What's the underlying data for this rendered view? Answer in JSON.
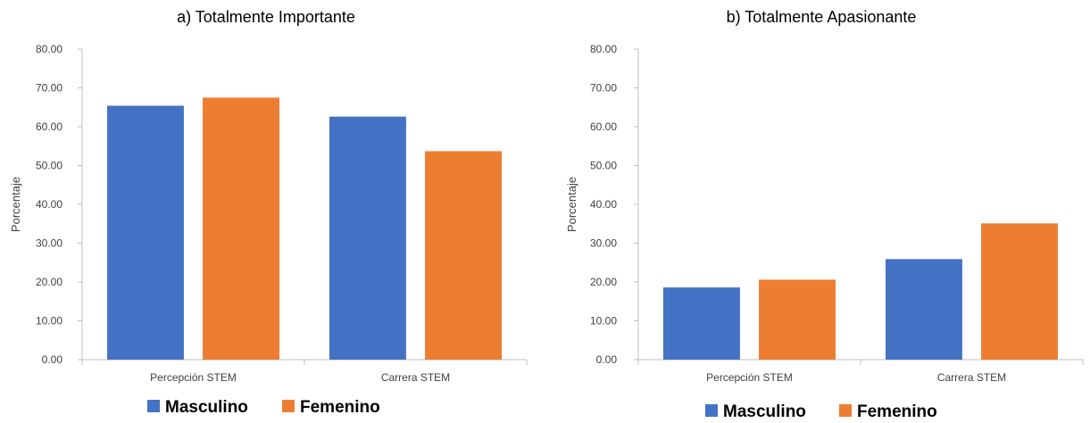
{
  "chart_data": [
    {
      "type": "bar",
      "title": "a) Totalmente Importante",
      "xlabel": "",
      "ylabel": "Porcentaje",
      "ylim": [
        0,
        80
      ],
      "yticks": [
        "0.00",
        "10.00",
        "20.00",
        "30.00",
        "40.00",
        "50.00",
        "60.00",
        "70.00",
        "80.00"
      ],
      "categories": [
        "Percepción STEM",
        "Carrera STEM"
      ],
      "series": [
        {
          "name": "Masculino",
          "color": "#4472C4",
          "values": [
            65.4,
            62.6
          ]
        },
        {
          "name": "Femenino",
          "color": "#ED7D31",
          "values": [
            67.5,
            53.7
          ]
        }
      ],
      "legend": "bottom",
      "grid": false
    },
    {
      "type": "bar",
      "title": "b) Totalmente Apasionante",
      "xlabel": "",
      "ylabel": "Porcentaje",
      "ylim": [
        0,
        80
      ],
      "yticks": [
        "0.00",
        "10.00",
        "20.00",
        "30.00",
        "40.00",
        "50.00",
        "60.00",
        "70.00",
        "80.00"
      ],
      "categories": [
        "Percepción STEM",
        "Carrera STEM"
      ],
      "series": [
        {
          "name": "Masculino",
          "color": "#4472C4",
          "values": [
            18.6,
            25.9
          ]
        },
        {
          "name": "Femenino",
          "color": "#ED7D31",
          "values": [
            20.6,
            35.1
          ]
        }
      ],
      "legend": "bottom",
      "grid": false
    }
  ]
}
